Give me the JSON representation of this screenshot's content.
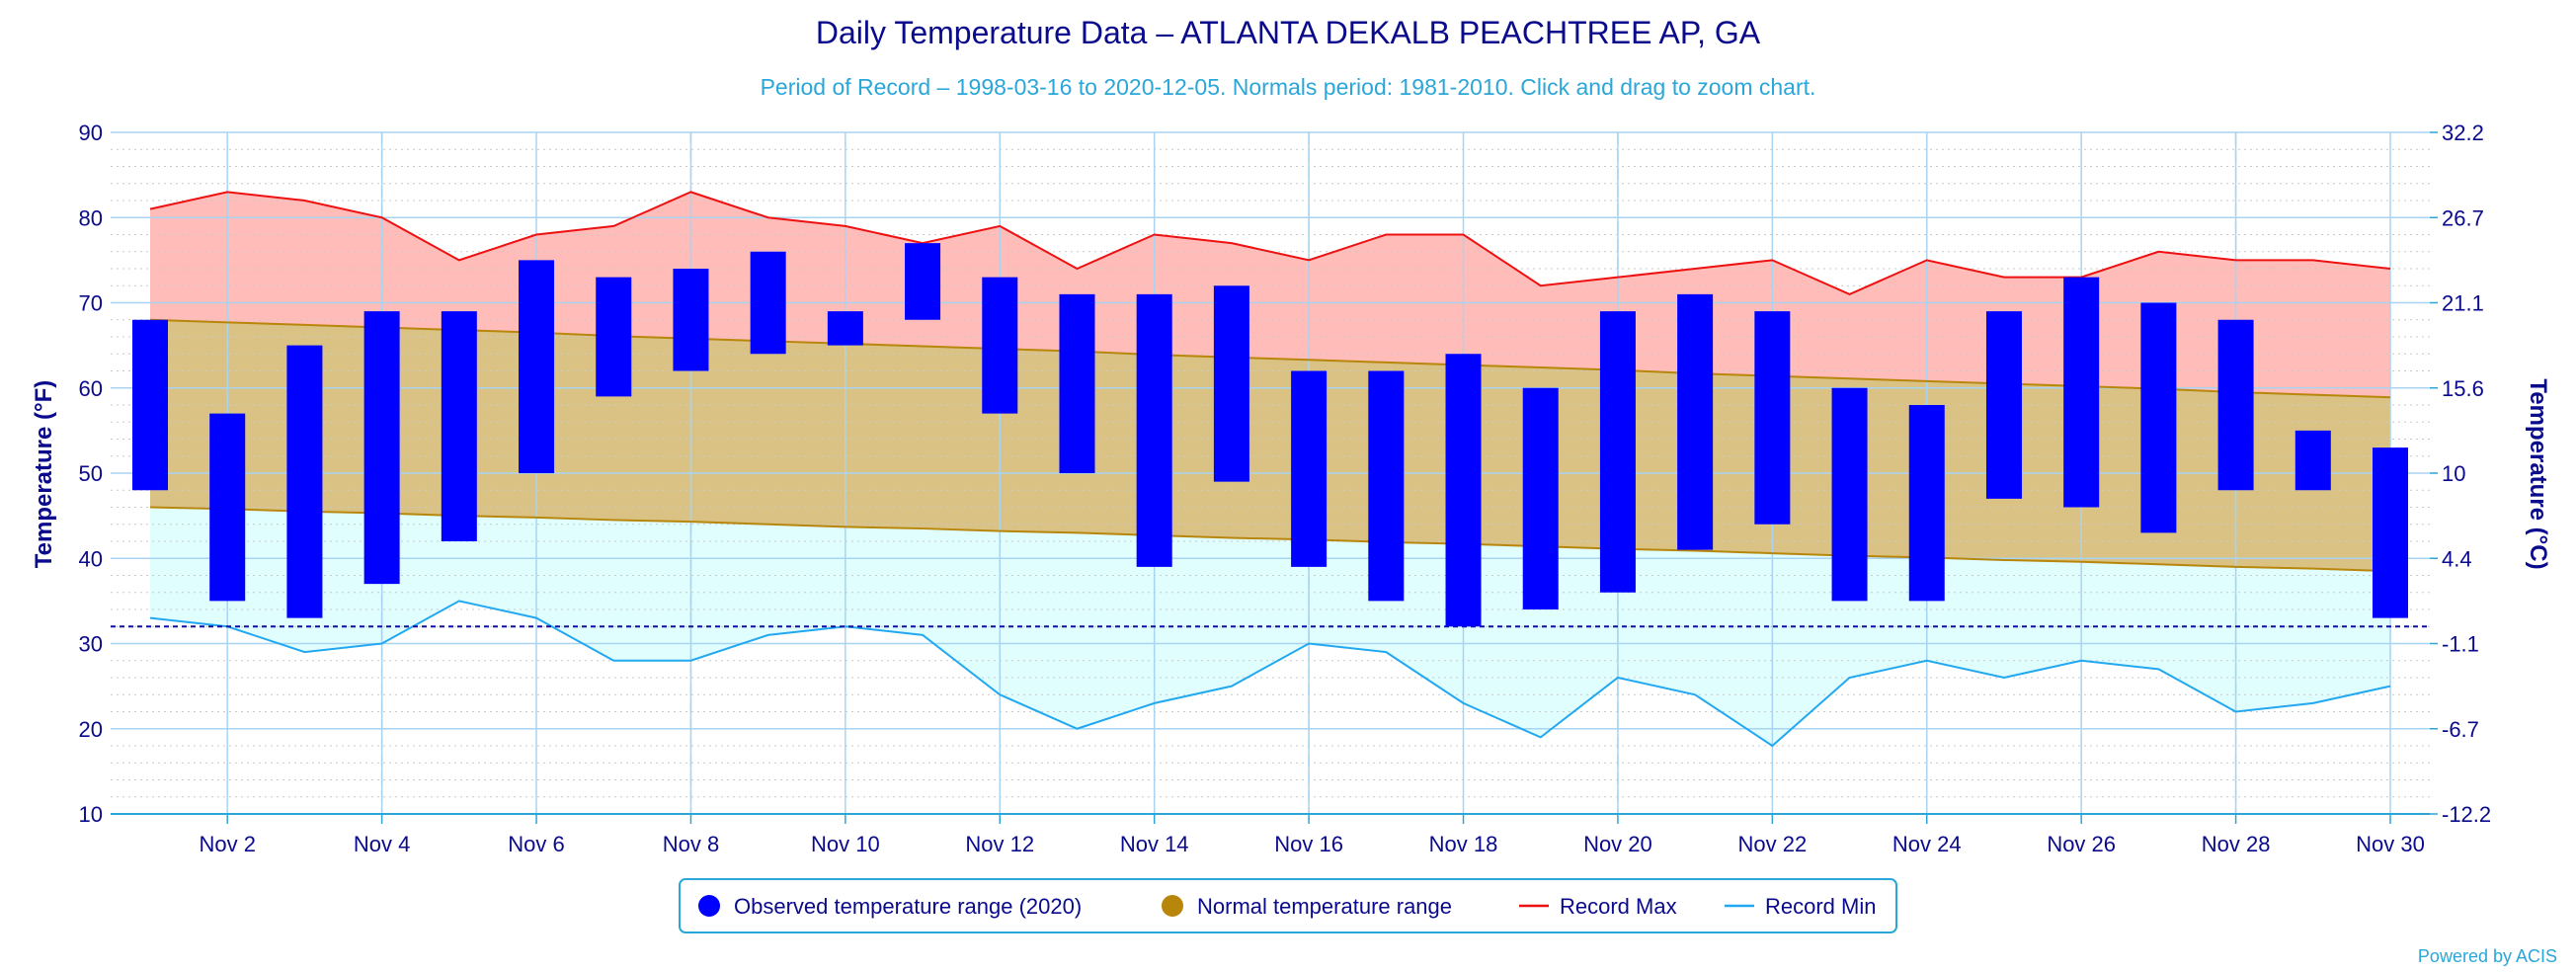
{
  "chart_data": {
    "type": "bar",
    "title": "Daily Temperature Data – ATLANTA DEKALB PEACHTREE AP, GA",
    "subtitle": "Period of Record – 1998-03-16 to 2020-12-05. Normals period: 1981-2010. Click and drag to zoom chart.",
    "ylabel": "Temperature (°F)",
    "ylabel_right": "Temperature (°C)",
    "ylim": [
      10,
      90
    ],
    "yticks": [
      10,
      20,
      30,
      40,
      50,
      60,
      70,
      80,
      90
    ],
    "yticks_right": [
      "-12.2",
      "-6.7",
      "-1.1",
      "4.4",
      "10",
      "15.6",
      "21.1",
      "26.7",
      "32.2"
    ],
    "xticks": [
      "Nov 2",
      "Nov 4",
      "Nov 6",
      "Nov 8",
      "Nov 10",
      "Nov 12",
      "Nov 14",
      "Nov 16",
      "Nov 18",
      "Nov 20",
      "Nov 22",
      "Nov 24",
      "Nov 26",
      "Nov 28",
      "Nov 30"
    ],
    "days": [
      1,
      2,
      3,
      4,
      5,
      6,
      7,
      8,
      9,
      10,
      11,
      12,
      13,
      14,
      15,
      16,
      17,
      18,
      19,
      20,
      21,
      22,
      23,
      24,
      25,
      26,
      27,
      28,
      29,
      30
    ],
    "freezing_line": 32,
    "grid": true,
    "legend_position": "bottom",
    "series": [
      {
        "name": "Observed temperature range (2020)",
        "color": "#0000ff",
        "high": [
          68,
          57,
          65,
          69,
          69,
          75,
          73,
          74,
          76,
          69,
          77,
          73,
          71,
          71,
          72,
          62,
          62,
          64,
          60,
          69,
          71,
          69,
          60,
          58,
          69,
          73,
          70,
          68,
          55,
          53
        ],
        "low": [
          48,
          35,
          33,
          37,
          42,
          50,
          59,
          62,
          64,
          65,
          68,
          57,
          50,
          39,
          49,
          39,
          35,
          32,
          34,
          36,
          41,
          44,
          35,
          35,
          47,
          46,
          43,
          48,
          48,
          33
        ]
      },
      {
        "name": "Normal temperature range",
        "color": "#b8860b",
        "high": [
          68,
          67.7,
          67.4,
          67.1,
          66.8,
          66.5,
          66.1,
          65.8,
          65.5,
          65.2,
          64.9,
          64.6,
          64.3,
          63.9,
          63.6,
          63.3,
          63,
          62.7,
          62.4,
          62.1,
          61.7,
          61.4,
          61.1,
          60.8,
          60.5,
          60.2,
          59.9,
          59.5,
          59.2,
          58.9
        ],
        "low": [
          46,
          45.8,
          45.5,
          45.3,
          45,
          44.8,
          44.5,
          44.3,
          44,
          43.7,
          43.5,
          43.2,
          43,
          42.7,
          42.4,
          42.2,
          41.9,
          41.7,
          41.4,
          41.1,
          40.9,
          40.6,
          40.3,
          40.1,
          39.8,
          39.6,
          39.3,
          39,
          38.8,
          38.5
        ]
      },
      {
        "name": "Record Max",
        "color": "#ee1111",
        "values": [
          81,
          83,
          82,
          80,
          75,
          78,
          79,
          83,
          80,
          79,
          77,
          79,
          74,
          78,
          77,
          75,
          78,
          78,
          72,
          73,
          74,
          75,
          71,
          75,
          73,
          73,
          76,
          75,
          75,
          74
        ]
      },
      {
        "name": "Record Min",
        "color": "#22a8f0",
        "values": [
          33,
          32,
          29,
          30,
          35,
          33,
          28,
          28,
          31,
          32,
          31,
          24,
          20,
          23,
          25,
          30,
          29,
          23,
          19,
          26,
          24,
          18,
          26,
          28,
          26,
          28,
          27,
          22,
          23,
          25
        ]
      }
    ],
    "credit": "Powered by ACIS"
  }
}
